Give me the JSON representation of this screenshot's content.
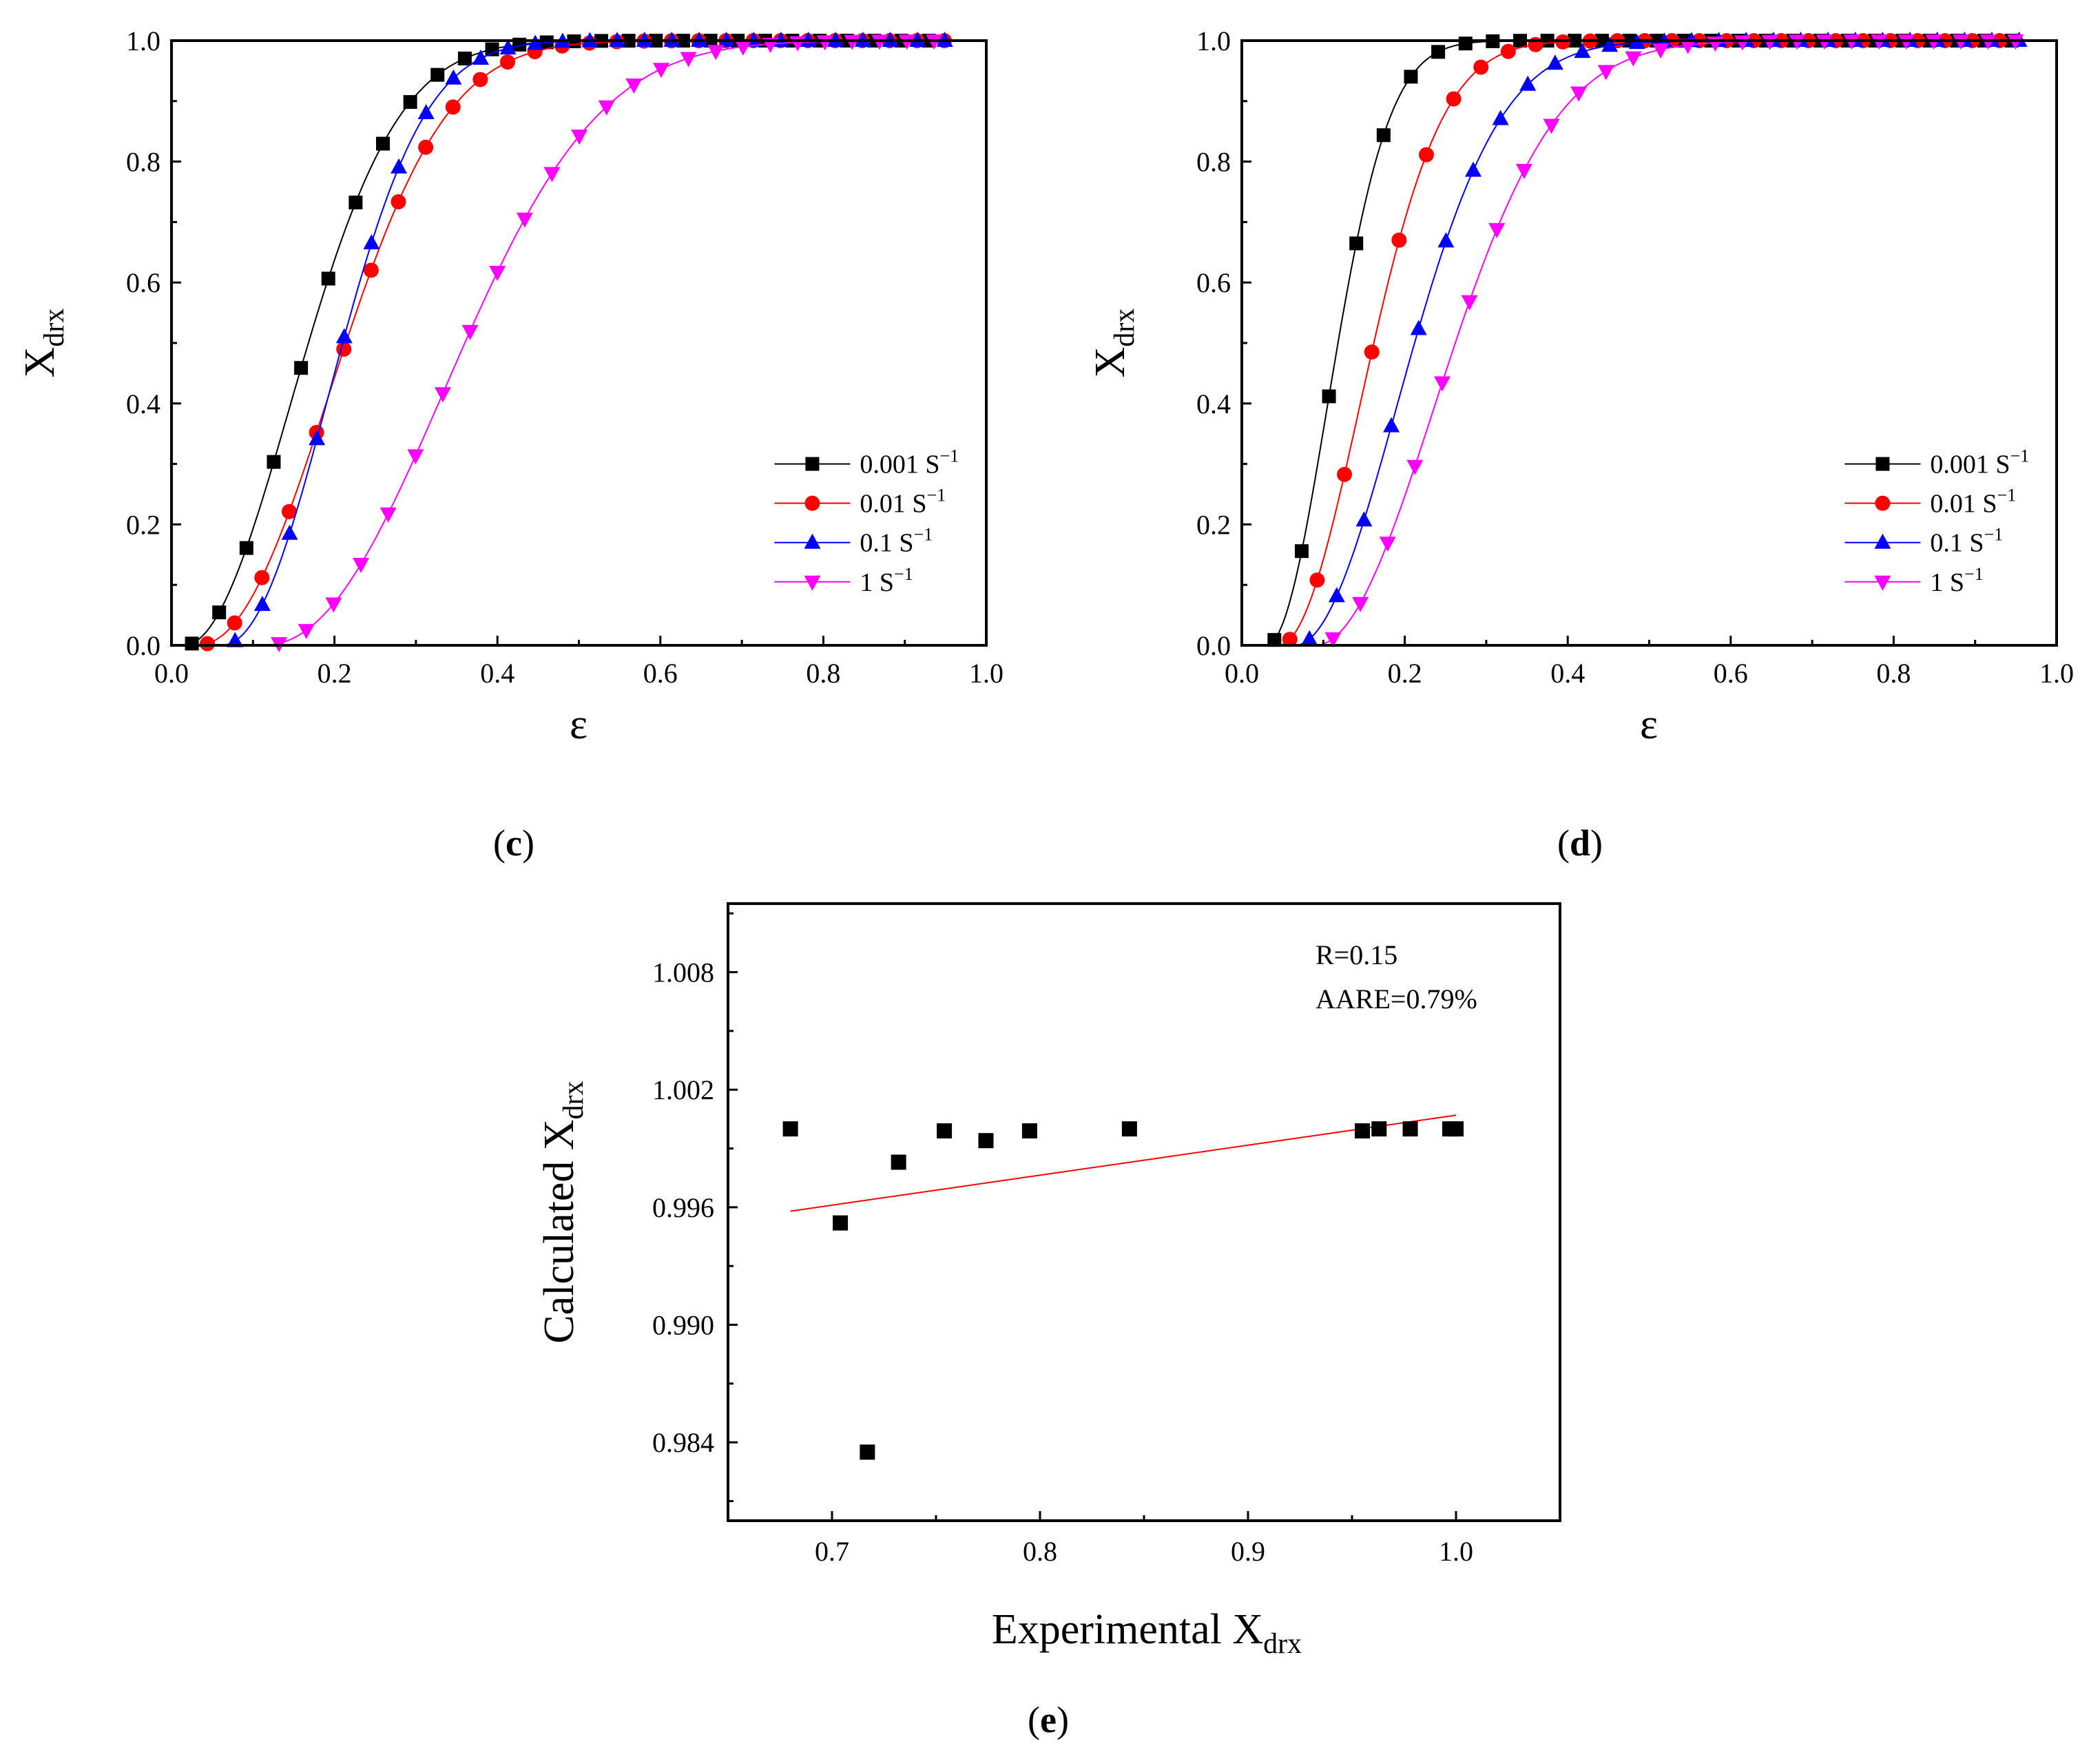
{
  "chart_data": [
    {
      "panel": "c",
      "panel_label": "c",
      "type": "line",
      "xlabel": "ε",
      "ylabel_main": "X",
      "ylabel_sub": "drx",
      "xlim": [
        0.0,
        1.0
      ],
      "ylim": [
        0.0,
        1.0
      ],
      "xticks": [
        "0.0",
        "0.2",
        "0.4",
        "0.6",
        "0.8",
        "1.0"
      ],
      "yticks": [
        "0.0",
        "0.2",
        "0.4",
        "0.6",
        "0.8",
        "1.0"
      ],
      "legend_position": "lower-right",
      "series": [
        {
          "name": "0.001 S",
          "sup": "−1",
          "color": "#000000",
          "marker": "square",
          "eps0": 0.015,
          "eps05": 0.168,
          "k": 2.0
        },
        {
          "name": "0.01 S",
          "sup": "−1",
          "color": "#ff0000",
          "marker": "circle",
          "eps0": 0.03,
          "eps05": 0.214,
          "k": 2.15
        },
        {
          "name": "0.1 S",
          "sup": "−1",
          "color": "#0000ff",
          "marker": "triangle-up",
          "eps0": 0.06,
          "eps05": 0.21,
          "k": 2.15
        },
        {
          "name": "1 S",
          "sup": "−1",
          "color": "#ff00ff",
          "marker": "triangle-down",
          "eps0": 0.11,
          "eps05": 0.36,
          "k": 2.2
        }
      ]
    },
    {
      "panel": "d",
      "panel_label": "d",
      "type": "line",
      "xlabel": "ε",
      "ylabel_main": "X",
      "ylabel_sub": "drx",
      "xlim": [
        0.0,
        1.0
      ],
      "ylim": [
        0.0,
        1.0
      ],
      "xticks": [
        "0.0",
        "0.2",
        "0.4",
        "0.6",
        "0.8",
        "1.0"
      ],
      "yticks": [
        "0.0",
        "0.2",
        "0.4",
        "0.6",
        "0.8",
        "1.0"
      ],
      "legend_position": "lower-right",
      "series": [
        {
          "name": "0.001 S",
          "sup": "−1",
          "color": "#000000",
          "marker": "square",
          "eps0": 0.03,
          "eps05": 0.118,
          "k": 2.0
        },
        {
          "name": "0.01 S",
          "sup": "−1",
          "color": "#ff0000",
          "marker": "circle",
          "eps0": 0.045,
          "eps05": 0.162,
          "k": 2.0
        },
        {
          "name": "0.1 S",
          "sup": "−1",
          "color": "#0000ff",
          "marker": "triangle-up",
          "eps0": 0.065,
          "eps05": 0.212,
          "k": 2.0
        },
        {
          "name": "1 S",
          "sup": "−1",
          "color": "#ff00ff",
          "marker": "triangle-down",
          "eps0": 0.09,
          "eps05": 0.262,
          "k": 2.0
        }
      ]
    },
    {
      "panel": "e",
      "panel_label": "e",
      "type": "scatter",
      "xlabel_main": "Experimental X",
      "xlabel_sub": "drx",
      "ylabel_main": "Calculated X",
      "ylabel_sub": "drx",
      "xlim": [
        0.65,
        1.05
      ],
      "ylim": [
        0.98,
        1.0115
      ],
      "xticks": [
        0.7,
        0.8,
        0.9,
        1.0
      ],
      "xtick_labels": [
        "0.7",
        "0.8",
        "0.9",
        "1.0"
      ],
      "yticks": [
        0.984,
        0.99,
        0.996,
        1.002,
        1.008
      ],
      "ytick_labels": [
        "0.984",
        "0.990",
        "0.996",
        "1.002",
        "1.008"
      ],
      "annotations": [
        "R=0.15",
        "AARE=0.79%"
      ],
      "points": [
        [
          0.68,
          1.0
        ],
        [
          0.704,
          0.9952
        ],
        [
          0.717,
          0.9835
        ],
        [
          0.732,
          0.9983
        ],
        [
          0.754,
          0.9999
        ],
        [
          0.774,
          0.9994
        ],
        [
          0.795,
          0.9999
        ],
        [
          0.843,
          1.0
        ],
        [
          0.955,
          0.9999
        ],
        [
          0.963,
          1.0
        ],
        [
          0.978,
          1.0
        ],
        [
          0.997,
          1.0
        ],
        [
          1.0,
          1.0
        ]
      ],
      "fit_line": {
        "x": [
          0.68,
          1.0
        ],
        "y": [
          0.9958,
          1.0007
        ],
        "color": "#ff0000"
      }
    }
  ]
}
